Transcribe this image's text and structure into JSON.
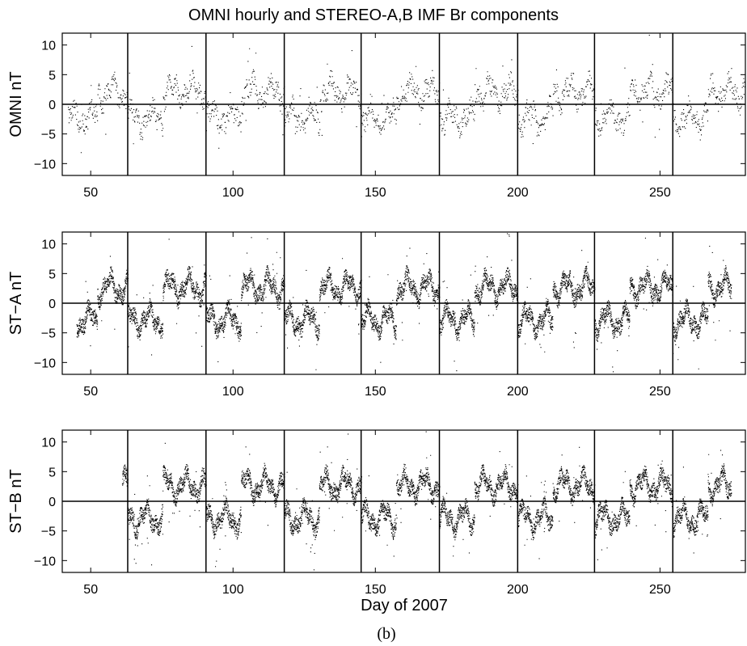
{
  "title": "OMNI hourly and STEREO-A,B IMF Br components",
  "xlabel": "Day of 2007",
  "caption": "(b)",
  "chart_data": [
    {
      "type": "scatter",
      "ylabel": "OMNI nT",
      "xlim": [
        40,
        280
      ],
      "ylim": [
        -12,
        12
      ],
      "xticks": [
        50,
        100,
        150,
        200,
        250
      ],
      "yticks": [
        -10,
        -5,
        0,
        5,
        10
      ],
      "data_start_day": 42,
      "data_end_day": 280,
      "cadence_per_day": 8,
      "marker_color": "#000000",
      "zero_line": 0,
      "rotation_boundaries": [
        63,
        90.5,
        118,
        145,
        172.5,
        200,
        227,
        254.5
      ]
    },
    {
      "type": "scatter",
      "ylabel": "ST−A nT",
      "xlim": [
        40,
        280
      ],
      "ylim": [
        -12,
        12
      ],
      "xticks": [
        50,
        100,
        150,
        200,
        250
      ],
      "yticks": [
        -10,
        -5,
        0,
        5,
        10
      ],
      "data_start_day": 45,
      "data_end_day": 275,
      "cadence_per_day": 30,
      "marker_color": "#000000",
      "zero_line": 0,
      "rotation_boundaries": [
        63,
        90.5,
        118,
        145,
        172.5,
        200,
        227,
        254.5
      ]
    },
    {
      "type": "scatter",
      "ylabel": "ST−B nT",
      "xlim": [
        40,
        280
      ],
      "ylim": [
        -12,
        12
      ],
      "xticks": [
        50,
        100,
        150,
        200,
        250
      ],
      "yticks": [
        -10,
        -5,
        0,
        5,
        10
      ],
      "data_start_day": 61,
      "data_end_day": 275,
      "cadence_per_day": 30,
      "marker_color": "#000000",
      "zero_line": 0,
      "rotation_boundaries": [
        63,
        90.5,
        118,
        145,
        172.5,
        200,
        227,
        254.5
      ]
    }
  ]
}
